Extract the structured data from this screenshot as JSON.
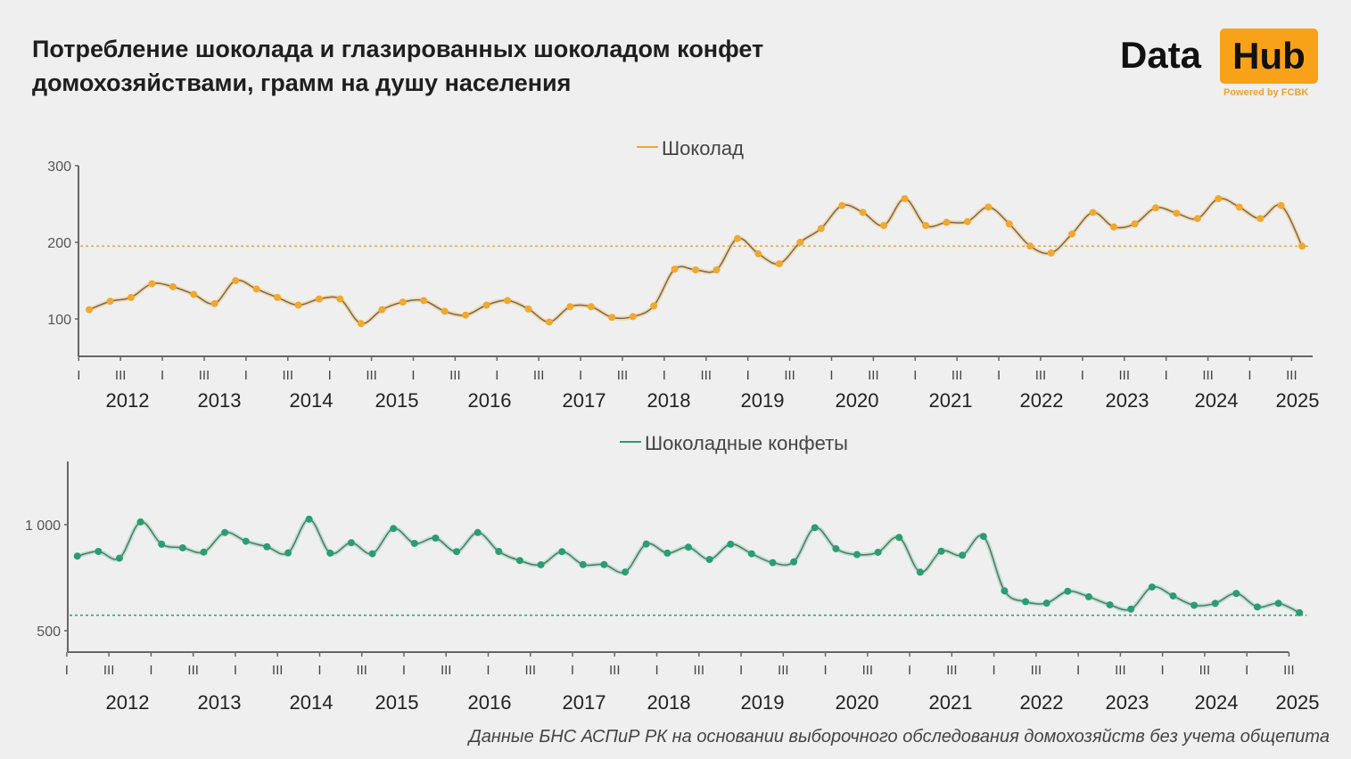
{
  "title_lines": [
    "Потребление шоколада и глазированных шоколадом конфет",
    "домохозяйствами, грамм на душу населения"
  ],
  "logo": {
    "word1": "Data",
    "word2": "Hub",
    "tagline": "Powered by FCBK"
  },
  "footer": "Данные БНС АСПиР РК на основании выборочного обследования домохозяйств без учета общепита",
  "colors": {
    "background": "#efefef",
    "chocolate": "#f0a830",
    "candies": "#2a9d72",
    "axis": "#666666"
  },
  "chart_data": [
    {
      "type": "line",
      "legend": "Шоколад",
      "legend_position": "top-center",
      "ylim": [
        50,
        300
      ],
      "yticks": [
        100,
        200,
        300
      ],
      "ytick_labels": [
        "100",
        "200",
        "300"
      ],
      "reference_line": 195,
      "x_start": "2011 I",
      "x_end": "2025 III",
      "quarter_tick_labels": [
        "I",
        "III"
      ],
      "year_labels": [
        "2012",
        "2013",
        "2014",
        "2015",
        "2016",
        "2017",
        "2018",
        "2019",
        "2020",
        "2021",
        "2022",
        "2023",
        "2024",
        "2025"
      ],
      "values": [
        112,
        123,
        128,
        146,
        142,
        132,
        120,
        150,
        139,
        128,
        118,
        126,
        126,
        94,
        112,
        122,
        124,
        110,
        105,
        118,
        124,
        113,
        96,
        116,
        116,
        102,
        103,
        117,
        165,
        164,
        164,
        205,
        185,
        172,
        200,
        218,
        248,
        239,
        222,
        257,
        222,
        226,
        227,
        246,
        224,
        195,
        186,
        211,
        239,
        220,
        224,
        245,
        238,
        231,
        257,
        246,
        231,
        248,
        195
      ]
    },
    {
      "type": "line",
      "legend": "Шоколадные конфеты",
      "legend_position": "top-center",
      "ylim": [
        450,
        1300
      ],
      "yticks": [
        500,
        1000
      ],
      "ytick_labels": [
        "500",
        "1 000"
      ],
      "reference_line": 573,
      "x_start": "2011 I",
      "x_end": "2025 III",
      "quarter_tick_labels": [
        "I",
        "III"
      ],
      "year_labels": [
        "2012",
        "2013",
        "2014",
        "2015",
        "2016",
        "2017",
        "2018",
        "2019",
        "2020",
        "2021",
        "2022",
        "2023",
        "2024",
        "2025"
      ],
      "values": [
        852,
        874,
        842,
        1013,
        908,
        891,
        871,
        963,
        922,
        896,
        867,
        1026,
        866,
        915,
        863,
        982,
        912,
        937,
        873,
        963,
        874,
        831,
        811,
        873,
        812,
        812,
        777,
        909,
        866,
        894,
        836,
        908,
        863,
        821,
        825,
        986,
        887,
        859,
        870,
        940,
        776,
        875,
        856,
        945,
        688,
        637,
        630,
        686,
        660,
        622,
        602,
        706,
        664,
        620,
        629,
        676,
        612,
        629,
        585
      ]
    }
  ]
}
